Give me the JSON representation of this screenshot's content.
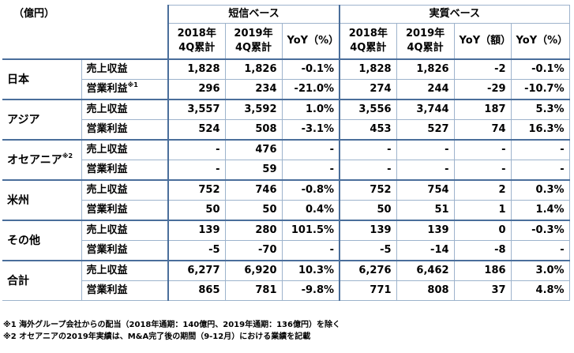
{
  "unit_label": "（億円）",
  "groups": {
    "tanshin": "短信ベース",
    "jisshitsu": "実質ベース"
  },
  "columns": {
    "y2018": [
      "2018年",
      "4Q累計"
    ],
    "y2019": [
      "2019年",
      "4Q累計"
    ],
    "yoy_pct": "YoY（%）",
    "yoy_amt": "YoY（額）"
  },
  "rows": [
    {
      "region": "日本",
      "region_sup": "",
      "metrics": [
        {
          "label": "売上収益",
          "sup": "",
          "v": [
            "1,828",
            "1,826",
            "-0.1%",
            "1,828",
            "1,826",
            "-2",
            "-0.1%"
          ]
        },
        {
          "label": "営業利益",
          "sup": "※1",
          "v": [
            "296",
            "234",
            "-21.0%",
            "274",
            "244",
            "-29",
            "-10.7%"
          ]
        }
      ]
    },
    {
      "region": "アジア",
      "region_sup": "",
      "metrics": [
        {
          "label": "売上収益",
          "sup": "",
          "v": [
            "3,557",
            "3,592",
            "1.0%",
            "3,556",
            "3,744",
            "187",
            "5.3%"
          ]
        },
        {
          "label": "営業利益",
          "sup": "",
          "v": [
            "524",
            "508",
            "-3.1%",
            "453",
            "527",
            "74",
            "16.3%"
          ]
        }
      ]
    },
    {
      "region": "オセアニア",
      "region_sup": "※2",
      "metrics": [
        {
          "label": "売上収益",
          "sup": "",
          "v": [
            "-",
            "476",
            "-",
            "-",
            "-",
            "-",
            "-"
          ]
        },
        {
          "label": "営業利益",
          "sup": "",
          "v": [
            "-",
            "59",
            "-",
            "-",
            "-",
            "-",
            "-"
          ]
        }
      ]
    },
    {
      "region": "米州",
      "region_sup": "",
      "metrics": [
        {
          "label": "売上収益",
          "sup": "",
          "v": [
            "752",
            "746",
            "-0.8%",
            "752",
            "754",
            "2",
            "0.3%"
          ]
        },
        {
          "label": "営業利益",
          "sup": "",
          "v": [
            "50",
            "50",
            "0.4%",
            "50",
            "51",
            "1",
            "1.4%"
          ]
        }
      ]
    },
    {
      "region": "その他",
      "region_sup": "",
      "metrics": [
        {
          "label": "売上収益",
          "sup": "",
          "v": [
            "139",
            "280",
            "101.5%",
            "139",
            "139",
            "0",
            "-0.3%"
          ]
        },
        {
          "label": "営業利益",
          "sup": "",
          "v": [
            "-5",
            "-70",
            "-",
            "-5",
            "-14",
            "-8",
            "-"
          ]
        }
      ]
    },
    {
      "region": "合計",
      "region_sup": "",
      "metrics": [
        {
          "label": "売上収益",
          "sup": "",
          "v": [
            "6,277",
            "6,920",
            "10.3%",
            "6,276",
            "6,462",
            "186",
            "3.0%"
          ]
        },
        {
          "label": "営業利益",
          "sup": "",
          "v": [
            "865",
            "781",
            "-9.8%",
            "771",
            "808",
            "37",
            "4.8%"
          ]
        }
      ]
    }
  ],
  "notes": [
    "※1 海外グループ会社からの配当（2018年通期：140億円、2019年通期：136億円）を除く",
    "※2 オセアニアの2019年実績は、M&A完了後の期間（9-12月）における業績を記載"
  ]
}
